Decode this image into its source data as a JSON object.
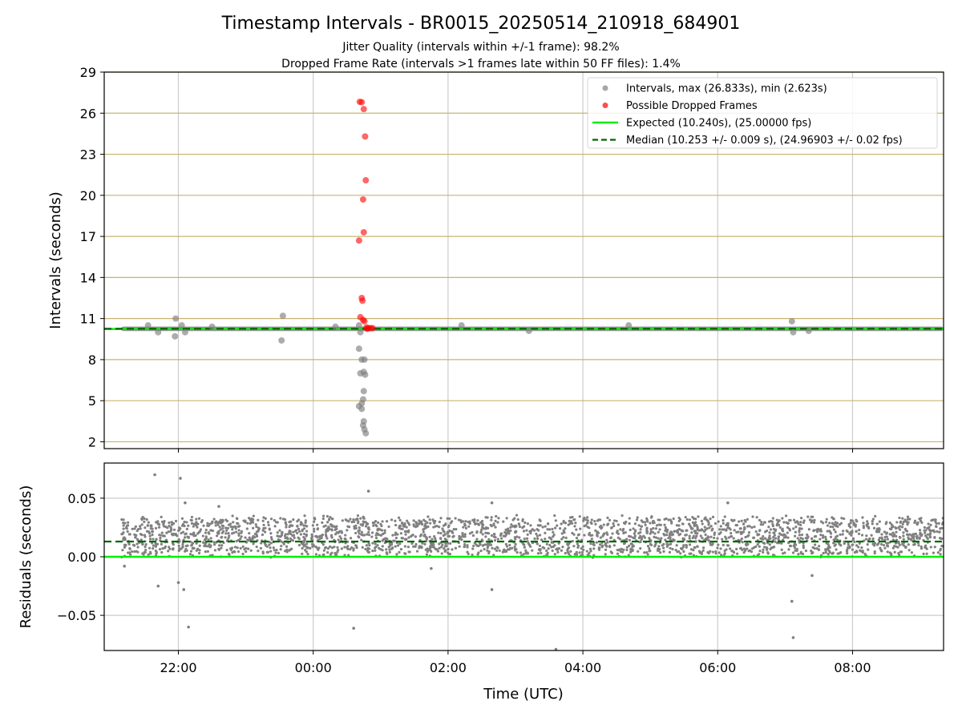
{
  "figure": {
    "title": "Timestamp Intervals - BR0015_20250514_210918_684901",
    "subtitle_1": "Jitter Quality (intervals within +/-1 frame): 98.2%",
    "subtitle_2": "Dropped Frame Rate (intervals >1 frames late within 50 FF files): 1.4%",
    "colors": {
      "normal_points": "#808080",
      "dropped_points": "#ff0000",
      "expected_line": "#00ee00",
      "median_line": "#006400",
      "gridline_top": "#c8b46e",
      "gridline": "#cccccc"
    }
  },
  "chart_data": [
    {
      "type": "scatter",
      "ylabel": "Intervals (seconds)",
      "xlim": [
        -3.1,
        9.35
      ],
      "ylim": [
        1.5,
        29
      ],
      "yticks": [
        "2",
        "5",
        "8",
        "11",
        "14",
        "17",
        "20",
        "23",
        "26",
        "29"
      ],
      "ytick_values": [
        2,
        5,
        8,
        11,
        14,
        17,
        20,
        23,
        26,
        29
      ],
      "grid": true,
      "legend_position": "top-right",
      "legend": [
        {
          "label": "Intervals, max (26.833s), min (2.623s)",
          "kind": "marker",
          "color": "#808080"
        },
        {
          "label": "Possible Dropped Frames",
          "kind": "marker",
          "color": "#ff0000"
        },
        {
          "label": "Expected (10.240s), (25.00000 fps)",
          "kind": "line",
          "color": "#00ee00"
        },
        {
          "label": "Median (10.253 +/- 0.009 s), (24.96903 +/- 0.02 fps)",
          "kind": "dashed",
          "color": "#006400"
        }
      ],
      "expected": 10.24,
      "median": 10.253,
      "normal_band": {
        "x_start": -2.85,
        "x_end": 9.35,
        "y_low": 10.2,
        "y_high": 10.3
      },
      "normal_outliers": [
        {
          "x": -2.3,
          "y": 10.0
        },
        {
          "x": -2.45,
          "y": 10.5
        },
        {
          "x": -2.05,
          "y": 9.7
        },
        {
          "x": -2.04,
          "y": 11.0
        },
        {
          "x": -1.95,
          "y": 10.5
        },
        {
          "x": -1.9,
          "y": 10.0
        },
        {
          "x": -1.5,
          "y": 10.4
        },
        {
          "x": -0.45,
          "y": 11.2
        },
        {
          "x": -0.47,
          "y": 9.4
        },
        {
          "x": 0.33,
          "y": 10.4
        },
        {
          "x": 2.2,
          "y": 10.5
        },
        {
          "x": 3.2,
          "y": 10.1
        },
        {
          "x": 4.68,
          "y": 10.5
        },
        {
          "x": 7.1,
          "y": 10.8
        },
        {
          "x": 7.12,
          "y": 10.0
        },
        {
          "x": 7.35,
          "y": 10.1
        },
        {
          "x": 0.68,
          "y": 10.5
        },
        {
          "x": 0.7,
          "y": 10.0
        },
        {
          "x": 0.68,
          "y": 8.8
        },
        {
          "x": 0.72,
          "y": 8.0
        },
        {
          "x": 0.76,
          "y": 8.0
        },
        {
          "x": 0.7,
          "y": 7.0
        },
        {
          "x": 0.75,
          "y": 7.1
        },
        {
          "x": 0.77,
          "y": 6.9
        },
        {
          "x": 0.75,
          "y": 5.7
        },
        {
          "x": 0.74,
          "y": 5.1
        },
        {
          "x": 0.72,
          "y": 4.8
        },
        {
          "x": 0.68,
          "y": 4.6
        },
        {
          "x": 0.72,
          "y": 4.4
        },
        {
          "x": 0.75,
          "y": 3.5
        },
        {
          "x": 0.74,
          "y": 3.2
        },
        {
          "x": 0.76,
          "y": 2.9
        },
        {
          "x": 0.78,
          "y": 2.62
        }
      ],
      "dropped": [
        {
          "x": 0.69,
          "y": 26.83
        },
        {
          "x": 0.72,
          "y": 26.8
        },
        {
          "x": 0.75,
          "y": 26.3
        },
        {
          "x": 0.77,
          "y": 24.3
        },
        {
          "x": 0.78,
          "y": 21.1
        },
        {
          "x": 0.74,
          "y": 19.7
        },
        {
          "x": 0.75,
          "y": 17.3
        },
        {
          "x": 0.68,
          "y": 16.7
        },
        {
          "x": 0.72,
          "y": 12.5
        },
        {
          "x": 0.73,
          "y": 12.3
        },
        {
          "x": 0.7,
          "y": 11.1
        },
        {
          "x": 0.74,
          "y": 10.9
        },
        {
          "x": 0.76,
          "y": 10.8
        },
        {
          "x": 0.79,
          "y": 10.35
        },
        {
          "x": 0.82,
          "y": 10.3
        },
        {
          "x": 0.85,
          "y": 10.3
        },
        {
          "x": 0.88,
          "y": 10.3
        },
        {
          "x": 0.8,
          "y": 10.25
        }
      ]
    },
    {
      "type": "scatter",
      "xlabel": "Time (UTC)",
      "ylabel": "Residuals (seconds)",
      "xlim": [
        -3.1,
        9.35
      ],
      "ylim": [
        -0.08,
        0.08
      ],
      "xticks": [
        "22:00",
        "00:00",
        "02:00",
        "04:00",
        "06:00",
        "08:00"
      ],
      "xtick_values": [
        -2,
        0,
        2,
        4,
        6,
        8
      ],
      "yticks": [
        "0.05",
        "0.00",
        "−0.05"
      ],
      "ytick_values": [
        0.05,
        0,
        -0.05
      ],
      "grid": true,
      "expected": 0.0,
      "median": 0.013,
      "band": {
        "x_start": -2.85,
        "x_end": 9.35,
        "low": 0.002,
        "high": 0.033
      },
      "outliers": [
        {
          "x": -2.35,
          "y": 0.07
        },
        {
          "x": -1.97,
          "y": 0.067
        },
        {
          "x": -2.3,
          "y": -0.025
        },
        {
          "x": -2.0,
          "y": -0.022
        },
        {
          "x": -1.92,
          "y": -0.028
        },
        {
          "x": -1.85,
          "y": -0.06
        },
        {
          "x": 0.82,
          "y": 0.056
        },
        {
          "x": 0.6,
          "y": -0.061
        },
        {
          "x": 2.65,
          "y": -0.028
        },
        {
          "x": 3.6,
          "y": -0.079
        },
        {
          "x": 7.1,
          "y": -0.038
        },
        {
          "x": 7.12,
          "y": -0.069
        },
        {
          "x": -1.9,
          "y": 0.046
        },
        {
          "x": -1.4,
          "y": 0.043
        },
        {
          "x": 2.65,
          "y": 0.046
        },
        {
          "x": 6.15,
          "y": 0.046
        },
        {
          "x": -2.8,
          "y": -0.008
        },
        {
          "x": 1.75,
          "y": -0.01
        },
        {
          "x": 7.4,
          "y": -0.016
        }
      ]
    }
  ]
}
